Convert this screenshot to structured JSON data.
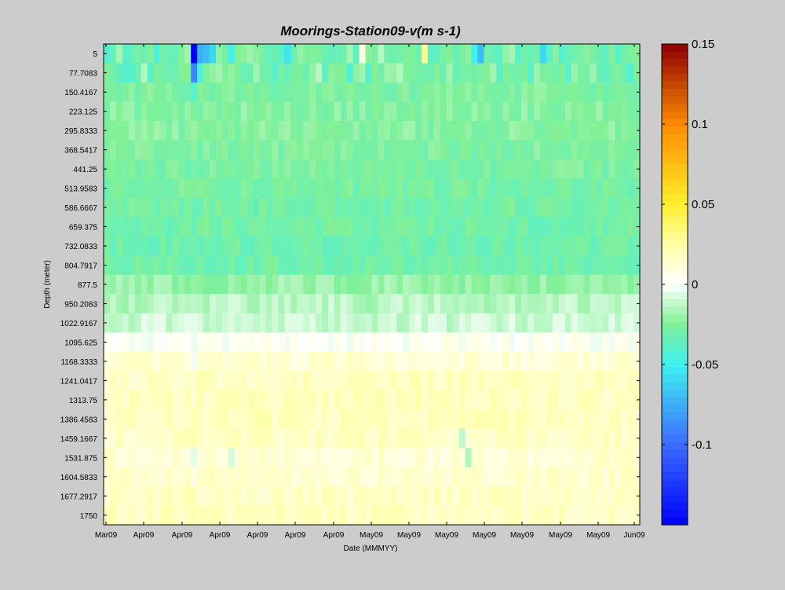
{
  "chart_data": {
    "type": "heatmap",
    "title": "Moorings-Station09-v(m s-1)",
    "xlabel": "Date (MMMYY)",
    "ylabel": "Depth (meter)",
    "x_tick_labels": [
      "Mar09",
      "Apr09",
      "Apr09",
      "Apr09",
      "Apr09",
      "Apr09",
      "Apr09",
      "May09",
      "May09",
      "May09",
      "May09",
      "May09",
      "May09",
      "May09",
      "Jun09"
    ],
    "y_tick_labels": [
      "5",
      "77.7083",
      "150.4167",
      "223.125",
      "295.8333",
      "368.5417",
      "441.25",
      "513.9583",
      "586.6667",
      "659.375",
      "732.0833",
      "804.7917",
      "877.5",
      "950.2083",
      "1022.9167",
      "1095.625",
      "1168.3333",
      "1241.0417",
      "1313.75",
      "1386.4583",
      "1459.1667",
      "1531.875",
      "1604.5833",
      "1677.2917",
      "1750"
    ],
    "depths": [
      5,
      77.7083,
      150.4167,
      223.125,
      295.8333,
      368.5417,
      441.25,
      513.9583,
      586.6667,
      659.375,
      732.0833,
      804.7917,
      877.5,
      950.2083,
      1022.9167,
      1095.625,
      1168.3333,
      1241.0417,
      1313.75,
      1386.4583,
      1459.1667,
      1531.875,
      1604.5833,
      1677.2917,
      1750
    ],
    "depth_profile": [
      -0.03,
      -0.028,
      -0.026,
      -0.024,
      -0.024,
      -0.026,
      -0.027,
      -0.028,
      -0.029,
      -0.03,
      -0.031,
      -0.03,
      -0.02,
      -0.014,
      -0.01,
      0.002,
      0.012,
      0.017,
      0.018,
      0.018,
      0.016,
      0.012,
      0.014,
      0.016,
      0.017
    ],
    "n_time_steps": 86,
    "anomalies": [
      {
        "row": 0,
        "col": 14,
        "value": -0.15
      },
      {
        "row": 1,
        "col": 14,
        "value": -0.09
      },
      {
        "row": 0,
        "col": 15,
        "value": -0.075
      },
      {
        "row": 0,
        "col": 16,
        "value": -0.07
      },
      {
        "row": 1,
        "col": 15,
        "value": -0.045
      },
      {
        "row": 0,
        "col": 17,
        "value": -0.06
      },
      {
        "row": 0,
        "col": 20,
        "value": -0.05
      },
      {
        "row": 0,
        "col": 29,
        "value": -0.055
      },
      {
        "row": 0,
        "col": 41,
        "value": 0.01
      },
      {
        "row": 0,
        "col": 51,
        "value": 0.03
      },
      {
        "row": 0,
        "col": 60,
        "value": -0.07
      },
      {
        "row": 0,
        "col": 59,
        "value": -0.05
      },
      {
        "row": 0,
        "col": 70,
        "value": -0.06
      },
      {
        "row": 2,
        "col": 14,
        "value": -0.04
      },
      {
        "row": 20,
        "col": 57,
        "value": -0.012
      },
      {
        "row": 21,
        "col": 58,
        "value": -0.015
      },
      {
        "row": 21,
        "col": 20,
        "value": -0.008
      },
      {
        "row": 21,
        "col": 14,
        "value": -0.005
      },
      {
        "row": 15,
        "col": 14,
        "value": -0.004
      },
      {
        "row": 16,
        "col": 14,
        "value": -0.002
      }
    ],
    "clim": [
      -0.15,
      0.15
    ],
    "colorbar_ticks": [
      0.15,
      0.1,
      0.05,
      0,
      -0.05,
      -0.1
    ],
    "colorbar_tick_labels": [
      "0.15",
      "0.1",
      "0.05",
      "0",
      "-0.05",
      "-0.1"
    ],
    "colormap": "jet-with-white-center",
    "background_color": "#cccccc"
  }
}
